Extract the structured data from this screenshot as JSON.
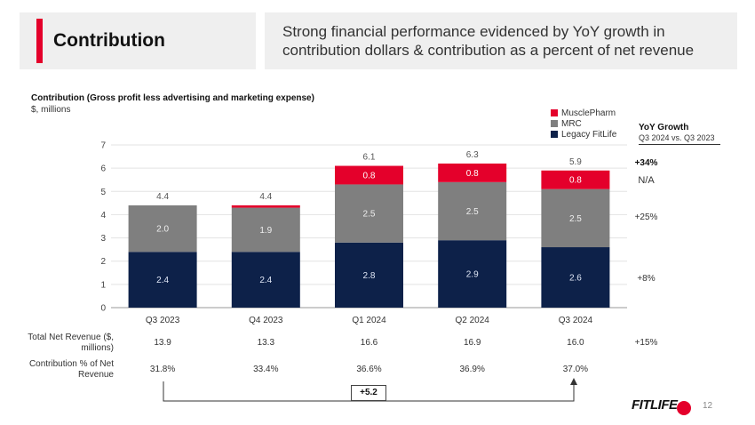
{
  "slide": {
    "title": "Contribution",
    "headline": "Strong financial performance evidenced by YoY growth in contribution dollars & contribution as a percent of net revenue",
    "page_number": "12",
    "logo_text": "FITLIFE"
  },
  "chart_data": {
    "type": "bar",
    "stacked": true,
    "title": "Contribution (Gross profit less advertising and marketing expense)",
    "subtitle": "$, millions",
    "categories": [
      "Q3 2023",
      "Q4 2023",
      "Q1 2024",
      "Q2 2024",
      "Q3 2024"
    ],
    "ylim": [
      0,
      7
    ],
    "yticks": [
      0,
      1,
      2,
      3,
      4,
      5,
      6,
      7
    ],
    "grid": true,
    "legend_position": "top-right",
    "series": [
      {
        "name": "Legacy FitLife",
        "color": "#0d2149",
        "values": [
          2.4,
          2.4,
          2.8,
          2.9,
          2.6
        ],
        "labels": [
          "2.4",
          "2.4",
          "2.8",
          "2.9",
          "2.6"
        ]
      },
      {
        "name": "MRC",
        "color": "#7f7f7f",
        "values": [
          2.0,
          1.9,
          2.5,
          2.5,
          2.5
        ],
        "labels": [
          "2.0",
          "1.9",
          "2.5",
          "2.5",
          "2.5"
        ]
      },
      {
        "name": "MusclePharm",
        "color": "#e4002b",
        "values": [
          0.0,
          0.1,
          0.8,
          0.8,
          0.8
        ],
        "labels": [
          "",
          "",
          "0.8",
          "0.8",
          "0.8"
        ]
      }
    ],
    "totals": [
      "4.4",
      "4.4",
      "6.1",
      "6.3",
      "5.9"
    ],
    "legend_order": [
      "MusclePharm",
      "MRC",
      "Legacy FitLife"
    ]
  },
  "yoy": {
    "title": "YoY Growth",
    "subtitle": "Q3 2024 vs. Q3 2023",
    "values": [
      "+34%",
      "N/A",
      "+25%",
      "+8%",
      "+15%"
    ]
  },
  "table": {
    "row1_label": "Total Net Revenue ($, millions)",
    "row1_values": [
      "13.9",
      "13.3",
      "16.6",
      "16.9",
      "16.0"
    ],
    "row2_label": "Contribution % of Net Revenue",
    "row2_values": [
      "31.8%",
      "33.4%",
      "36.6%",
      "36.9%",
      "37.0%"
    ]
  },
  "bracket_label": "+5.2"
}
